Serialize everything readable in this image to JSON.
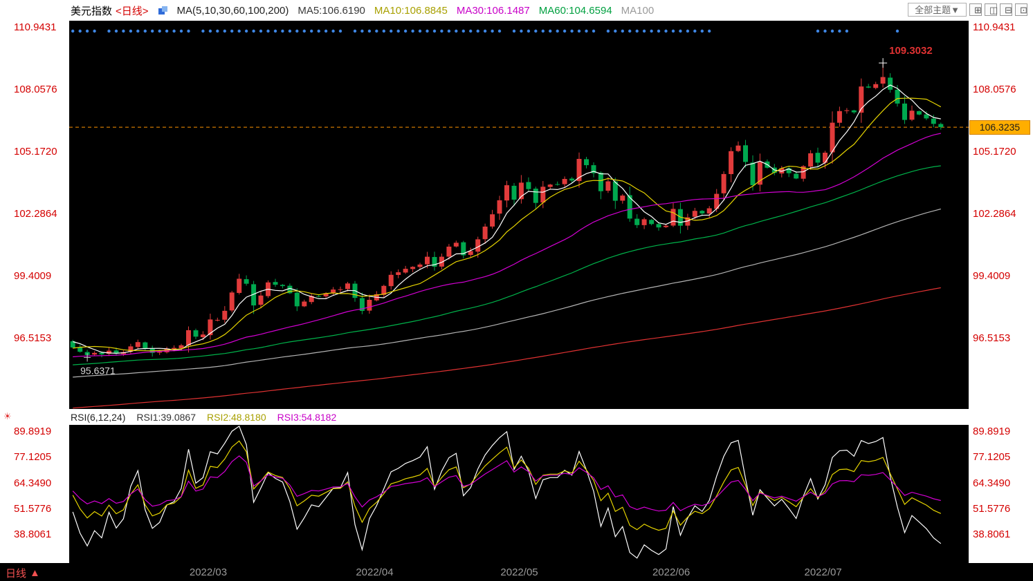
{
  "header": {
    "title": "美元指数",
    "period_tag": "<日线>",
    "ma_group_label": "MA(5,10,30,60,100,200)",
    "ma_items": [
      {
        "label": "MA5:106.6190"
      },
      {
        "label": "MA10:106.8845"
      },
      {
        "label": "MA30:106.1487"
      },
      {
        "label": "MA60:104.6594"
      },
      {
        "label": "MA100"
      }
    ],
    "theme_button": "全部主题▼",
    "layout_icons": [
      {
        "glyph": "⊞"
      },
      {
        "glyph": "◫"
      },
      {
        "glyph": "⊟"
      },
      {
        "glyph": "⊡"
      }
    ]
  },
  "rsi_legend": {
    "title": "RSI(6,12,24)",
    "rsi1": "RSI1:39.0867",
    "rsi2": "RSI2:48.8180",
    "rsi3": "RSI3:54.8182",
    "gear_glyph": "☀"
  },
  "main": {
    "last_price_label": "106.3235"
  },
  "bottom_bar": {
    "period": "日线",
    "arrow": "▲"
  },
  "chart_data": {
    "type": "candlestick",
    "symbol": "美元指数",
    "interval": "日线",
    "y_ticks_main": [
      110.9431,
      108.0576,
      105.172,
      102.2864,
      99.4009,
      96.5153
    ],
    "x_axis_labels": [
      {
        "label": "2022/03",
        "index": 19
      },
      {
        "label": "2022/04",
        "index": 42
      },
      {
        "label": "2022/05",
        "index": 62
      },
      {
        "label": "2022/06",
        "index": 83
      },
      {
        "label": "2022/07",
        "index": 104
      }
    ],
    "closes": [
      96.1,
      95.9,
      95.75,
      95.85,
      95.78,
      95.95,
      95.82,
      95.88,
      96.15,
      96.35,
      96.05,
      95.85,
      95.9,
      96.05,
      96.08,
      96.2,
      96.9,
      96.6,
      96.7,
      97.4,
      97.38,
      97.8,
      98.65,
      99.29,
      99.06,
      98.05,
      98.51,
      99.12,
      99.01,
      98.95,
      98.62,
      98.01,
      98.23,
      98.49,
      98.46,
      98.62,
      98.79,
      98.8,
      99.07,
      98.4,
      97.8,
      98.31,
      98.57,
      98.96,
      99.47,
      99.59,
      99.75,
      99.84,
      99.95,
      100.31,
      99.85,
      100.31,
      100.78,
      100.96,
      100.38,
      100.57,
      101.12,
      101.71,
      102.28,
      102.93,
      103.63,
      102.96,
      103.75,
      103.45,
      102.81,
      103.56,
      103.66,
      103.66,
      103.92,
      103.85,
      104.85,
      104.56,
      104.19,
      103.35,
      103.81,
      102.91,
      103.15,
      102.08,
      101.78,
      102.05,
      101.83,
      101.67,
      101.75,
      102.53,
      101.75,
      102.14,
      102.44,
      102.32,
      102.56,
      103.23,
      104.15,
      105.21,
      105.47,
      104.71,
      103.63,
      104.7,
      104.44,
      104.2,
      104.42,
      104.19,
      103.94,
      104.51,
      105.11,
      104.68,
      105.14,
      106.53,
      107.07,
      107.11,
      107.01,
      108.21,
      108.16,
      108.32,
      108.65,
      108.06,
      107.42,
      106.66,
      107.09,
      106.91,
      106.73,
      106.48,
      106.3235
    ],
    "last_price": 106.3235,
    "high_point": {
      "index": 112,
      "value": 109.3032
    },
    "low_point": {
      "index": 2,
      "value": 95.6371
    },
    "ma_periods": [
      5,
      10,
      30,
      60,
      100,
      200
    ],
    "ma_colors": {
      "ma5": "#ffffff",
      "ma10": "#e6d400",
      "ma30": "#d400d4",
      "ma60": "#00b44b",
      "ma100": "#b4b4b4",
      "ma200": "#e03232"
    },
    "candle_up_color": "#e13b3b",
    "candle_down_color": "#00a94f",
    "last_price_line_color": "#ff9500",
    "high_label_color": "#e03232",
    "low_label_color": "#d8d8d8",
    "event_marker_color": "#3f87e6",
    "event_marker_ranges": [
      [
        0,
        3
      ],
      [
        5,
        16
      ],
      [
        18,
        37
      ],
      [
        39,
        59
      ],
      [
        61,
        72
      ],
      [
        74,
        88
      ],
      [
        103,
        107
      ],
      [
        114,
        114
      ]
    ],
    "rsi": {
      "periods": [
        6,
        12,
        24
      ],
      "colors": [
        "#ffffff",
        "#e6d400",
        "#d400d4"
      ],
      "y_ticks": [
        89.8919,
        77.1205,
        64.349,
        51.5776,
        38.8061
      ],
      "values_legend": [
        39.0867,
        48.818,
        54.8182
      ]
    }
  }
}
